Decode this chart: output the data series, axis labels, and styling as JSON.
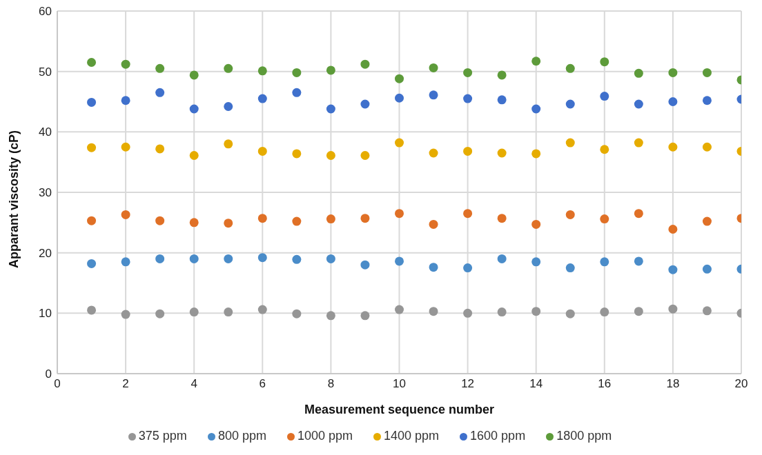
{
  "chart_data": {
    "type": "scatter",
    "xlabel": "Measurement sequence number",
    "ylabel": "Apparant viscosity (cP)",
    "x": [
      1,
      2,
      3,
      4,
      5,
      6,
      7,
      8,
      9,
      10,
      11,
      12,
      13,
      14,
      15,
      16,
      17,
      18,
      19,
      20
    ],
    "series": [
      {
        "name": "375 ppm",
        "color": "#969696",
        "values": [
          10.5,
          9.8,
          9.9,
          10.2,
          10.2,
          10.6,
          9.9,
          9.6,
          9.6,
          10.6,
          10.3,
          10.0,
          10.2,
          10.3,
          9.9,
          10.2,
          10.3,
          10.7,
          10.4,
          10.0
        ]
      },
      {
        "name": "800 ppm",
        "color": "#4a8cc9",
        "values": [
          18.2,
          18.5,
          19.0,
          19.0,
          19.0,
          19.2,
          18.9,
          19.0,
          18.0,
          18.6,
          17.6,
          17.5,
          19.0,
          18.5,
          17.5,
          18.5,
          18.6,
          17.2,
          17.3,
          17.3
        ]
      },
      {
        "name": "1000 ppm",
        "color": "#e07026",
        "values": [
          25.3,
          26.3,
          25.3,
          25.0,
          24.9,
          25.7,
          25.2,
          25.6,
          25.7,
          26.5,
          24.7,
          26.5,
          25.7,
          24.7,
          26.3,
          25.6,
          26.5,
          23.9,
          25.2,
          25.7
        ]
      },
      {
        "name": "1400 ppm",
        "color": "#e6ac00",
        "values": [
          37.4,
          37.5,
          37.2,
          36.1,
          38.0,
          36.8,
          36.4,
          36.1,
          36.1,
          38.2,
          36.5,
          36.8,
          36.5,
          36.4,
          38.2,
          37.1,
          38.2,
          37.5,
          37.5,
          36.8
        ]
      },
      {
        "name": "1600 ppm",
        "color": "#3f70cc",
        "values": [
          44.9,
          45.2,
          46.5,
          43.8,
          44.2,
          45.5,
          46.5,
          43.8,
          44.6,
          45.6,
          46.1,
          45.5,
          45.3,
          43.8,
          44.6,
          45.9,
          44.6,
          45.0,
          45.2,
          45.4
        ]
      },
      {
        "name": "1800 ppm",
        "color": "#5d9b3a",
        "values": [
          51.5,
          51.2,
          50.5,
          49.4,
          50.5,
          50.1,
          49.8,
          50.2,
          51.2,
          48.8,
          50.6,
          49.8,
          49.4,
          51.7,
          50.5,
          51.6,
          49.7,
          49.8,
          49.8,
          48.6
        ]
      }
    ],
    "xlim": [
      0,
      20
    ],
    "xticks": [
      0,
      2,
      4,
      6,
      8,
      10,
      12,
      14,
      16,
      18,
      20
    ],
    "ylim": [
      0,
      60
    ],
    "yticks": [
      0,
      10,
      20,
      30,
      40,
      50,
      60
    ],
    "grid": true,
    "legend": "bottom",
    "marker": "circle"
  }
}
